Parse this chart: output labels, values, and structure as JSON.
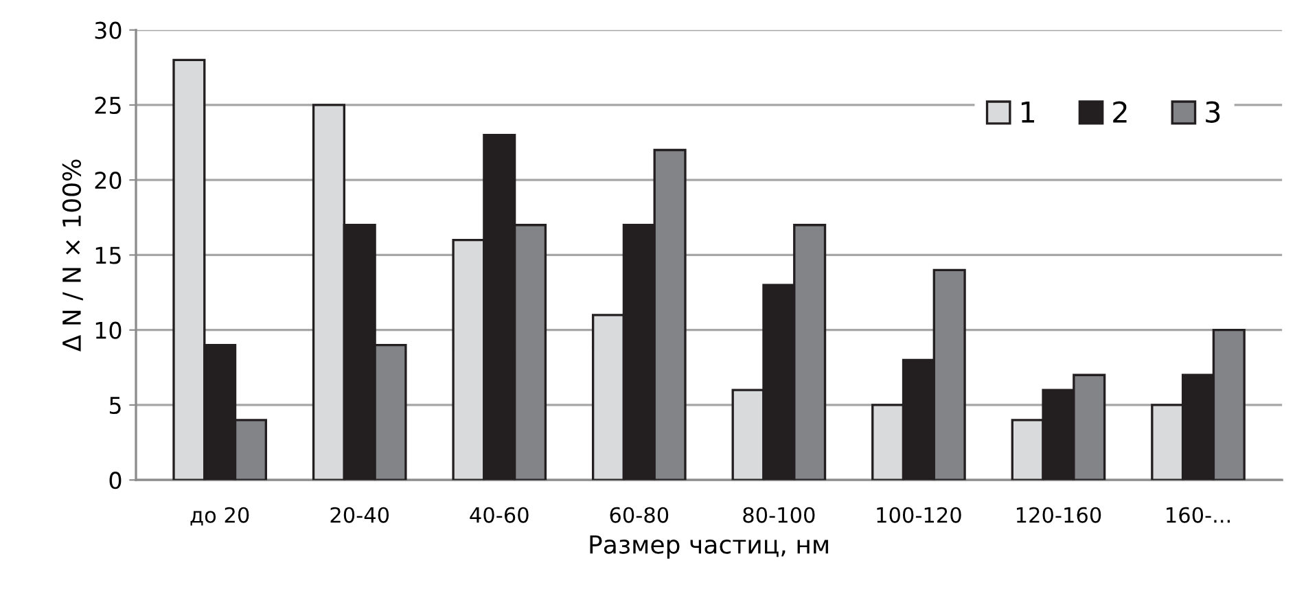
{
  "chart_data": {
    "type": "bar",
    "xlabel": "Размер частиц, нм",
    "ylabel": "Δ N / N × 100%",
    "categories": [
      "до 20",
      "20-40",
      "40-60",
      "60-80",
      "80-100",
      "100-120",
      "120-160",
      "160-..."
    ],
    "series": [
      {
        "name": "1",
        "color": "#d9dadb",
        "values": [
          28,
          25,
          16,
          11,
          6,
          5,
          4,
          5
        ]
      },
      {
        "name": "2",
        "color": "#231f20",
        "values": [
          9,
          17,
          23,
          17,
          13,
          8,
          6,
          7
        ]
      },
      {
        "name": "3",
        "color": "#838487",
        "values": [
          4,
          9,
          17,
          22,
          17,
          14,
          7,
          10
        ]
      }
    ],
    "ylim": [
      0,
      30
    ],
    "yticks": [
      0,
      5,
      10,
      15,
      20,
      25,
      30
    ],
    "grid": "y",
    "legend": "top right"
  }
}
